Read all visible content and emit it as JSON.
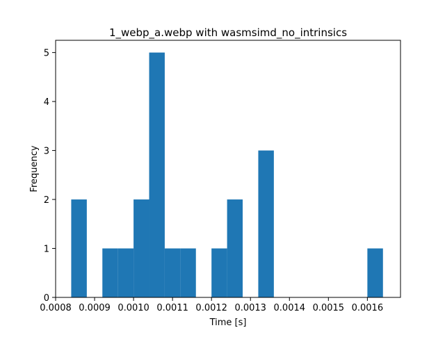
{
  "chart_data": {
    "type": "bar",
    "subtype": "histogram",
    "title": "1_webp_a.webp with wasmsimd_no_intrinsics",
    "xlabel": "Time [s]",
    "ylabel": "Frequency",
    "xlim": [
      0.0008,
      0.001685
    ],
    "ylim": [
      0,
      5.25
    ],
    "xticks": [
      "0.0008",
      "0.0009",
      "0.0010",
      "0.0011",
      "0.0012",
      "0.0013",
      "0.0014",
      "0.0015",
      "0.0016"
    ],
    "yticks": [
      "0",
      "1",
      "2",
      "3",
      "4",
      "5"
    ],
    "bin_width": 4e-05,
    "bins": [
      {
        "x0": 0.00084,
        "x1": 0.00088,
        "value": 2
      },
      {
        "x0": 0.00088,
        "x1": 0.00092,
        "value": 0
      },
      {
        "x0": 0.00092,
        "x1": 0.00096,
        "value": 1
      },
      {
        "x0": 0.00096,
        "x1": 0.001,
        "value": 1
      },
      {
        "x0": 0.001,
        "x1": 0.00104,
        "value": 2
      },
      {
        "x0": 0.00104,
        "x1": 0.00108,
        "value": 5
      },
      {
        "x0": 0.00108,
        "x1": 0.00112,
        "value": 1
      },
      {
        "x0": 0.00112,
        "x1": 0.00116,
        "value": 1
      },
      {
        "x0": 0.00116,
        "x1": 0.0012,
        "value": 0
      },
      {
        "x0": 0.0012,
        "x1": 0.00124,
        "value": 1
      },
      {
        "x0": 0.00124,
        "x1": 0.00128,
        "value": 2
      },
      {
        "x0": 0.00128,
        "x1": 0.00132,
        "value": 0
      },
      {
        "x0": 0.00132,
        "x1": 0.00136,
        "value": 3
      },
      {
        "x0": 0.00136,
        "x1": 0.0014,
        "value": 0
      },
      {
        "x0": 0.0014,
        "x1": 0.00144,
        "value": 0
      },
      {
        "x0": 0.00144,
        "x1": 0.00148,
        "value": 0
      },
      {
        "x0": 0.00148,
        "x1": 0.00152,
        "value": 0
      },
      {
        "x0": 0.00152,
        "x1": 0.00156,
        "value": 0
      },
      {
        "x0": 0.00156,
        "x1": 0.0016,
        "value": 0
      },
      {
        "x0": 0.0016,
        "x1": 0.00164,
        "value": 1
      }
    ],
    "grid": false,
    "bar_color": "#1f77b4"
  }
}
